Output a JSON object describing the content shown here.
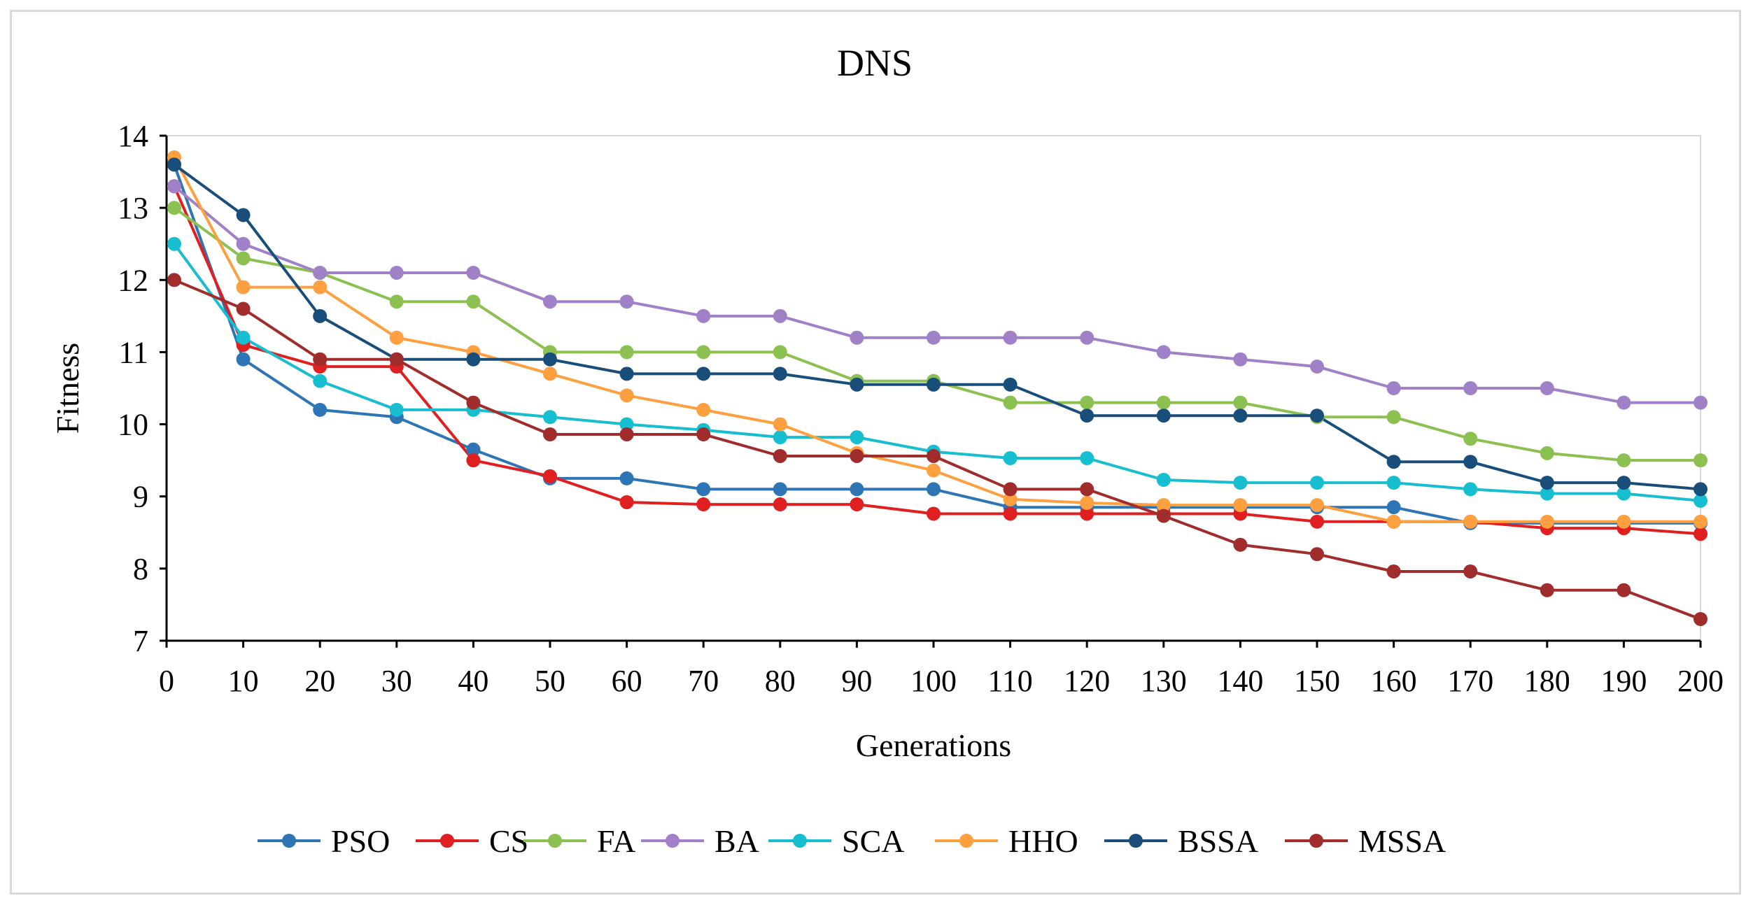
{
  "chart_data": {
    "type": "line",
    "title": "DNS",
    "xlabel": "Generations",
    "ylabel": "Fitness",
    "xlim": [
      0,
      200
    ],
    "ylim": [
      7,
      14
    ],
    "x": [
      1,
      10,
      20,
      30,
      40,
      50,
      60,
      70,
      80,
      90,
      100,
      110,
      120,
      130,
      140,
      150,
      160,
      170,
      180,
      190,
      200
    ],
    "xticks": [
      "0",
      "10",
      "20",
      "30",
      "40",
      "50",
      "60",
      "70",
      "80",
      "90",
      "100",
      "110",
      "120",
      "130",
      "140",
      "150",
      "160",
      "170",
      "180",
      "190",
      "200"
    ],
    "yticks": [
      "7",
      "8",
      "9",
      "10",
      "11",
      "12",
      "13",
      "14"
    ],
    "legend_position": "bottom",
    "series": [
      {
        "name": "PSO",
        "color": "#2e75b6",
        "values": [
          13.6,
          10.9,
          10.2,
          10.1,
          9.65,
          9.25,
          9.25,
          9.1,
          9.1,
          9.1,
          9.1,
          8.85,
          8.85,
          8.85,
          8.85,
          8.85,
          8.85,
          8.63,
          8.63,
          8.63,
          8.63
        ]
      },
      {
        "name": "CS",
        "color": "#e02020",
        "values": [
          13.3,
          11.1,
          10.8,
          10.8,
          9.5,
          9.28,
          8.92,
          8.89,
          8.89,
          8.89,
          8.76,
          8.76,
          8.76,
          8.76,
          8.76,
          8.65,
          8.65,
          8.65,
          8.56,
          8.56,
          8.48
        ]
      },
      {
        "name": "FA",
        "color": "#8cc152",
        "values": [
          13.0,
          12.3,
          12.1,
          11.7,
          11.7,
          11.0,
          11.0,
          11.0,
          11.0,
          10.6,
          10.6,
          10.3,
          10.3,
          10.3,
          10.3,
          10.1,
          10.1,
          9.8,
          9.6,
          9.5,
          9.5
        ]
      },
      {
        "name": "BA",
        "color": "#a081c8",
        "values": [
          13.3,
          12.5,
          12.1,
          12.1,
          12.1,
          11.7,
          11.7,
          11.5,
          11.5,
          11.2,
          11.2,
          11.2,
          11.2,
          11.0,
          10.9,
          10.8,
          10.5,
          10.5,
          10.5,
          10.3,
          10.3
        ]
      },
      {
        "name": "SCA",
        "color": "#17becf",
        "values": [
          12.5,
          11.2,
          10.6,
          10.2,
          10.2,
          10.1,
          10.0,
          9.92,
          9.82,
          9.82,
          9.62,
          9.53,
          9.53,
          9.23,
          9.19,
          9.19,
          9.19,
          9.1,
          9.04,
          9.04,
          8.94
        ]
      },
      {
        "name": "HHO",
        "color": "#ffa040",
        "values": [
          13.7,
          11.9,
          11.9,
          11.2,
          11.0,
          10.7,
          10.4,
          10.2,
          10.0,
          9.6,
          9.36,
          8.96,
          8.91,
          8.88,
          8.88,
          8.88,
          8.65,
          8.65,
          8.65,
          8.65,
          8.65
        ]
      },
      {
        "name": "BSSA",
        "color": "#1a4e7a",
        "values": [
          13.6,
          12.9,
          11.5,
          10.9,
          10.9,
          10.9,
          10.7,
          10.7,
          10.7,
          10.55,
          10.55,
          10.55,
          10.12,
          10.12,
          10.12,
          10.12,
          9.48,
          9.48,
          9.19,
          9.19,
          9.1
        ]
      },
      {
        "name": "MSSA",
        "color": "#a02c2c",
        "values": [
          12.0,
          11.6,
          10.9,
          10.9,
          10.3,
          9.86,
          9.86,
          9.86,
          9.56,
          9.56,
          9.56,
          9.1,
          9.1,
          8.73,
          8.33,
          8.2,
          7.96,
          7.96,
          7.7,
          7.7,
          7.3
        ]
      }
    ]
  }
}
